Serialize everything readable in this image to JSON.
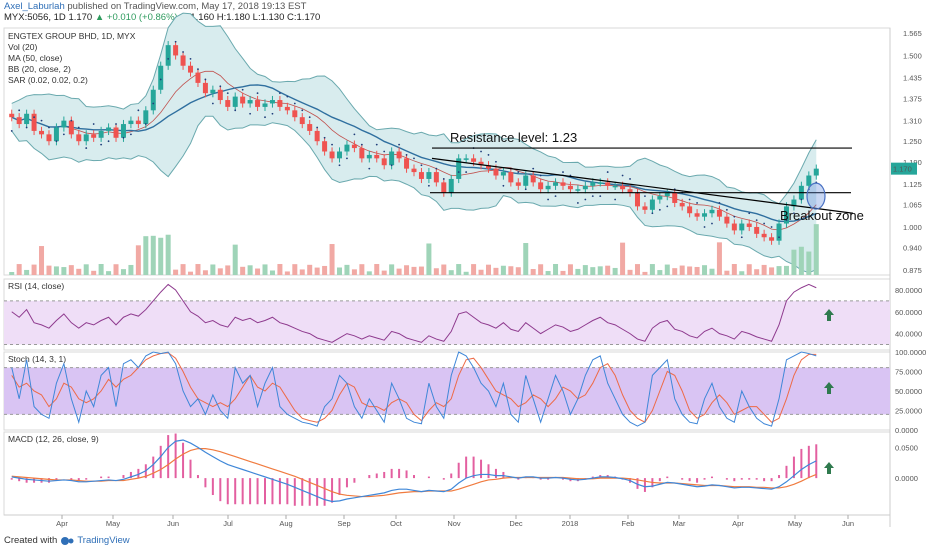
{
  "header": {
    "author": "Axel_Laburlah",
    "published": "published on TradingView.com, May 17, 2018 19:13 EST",
    "symbol": "MYX:5056, 1D",
    "last": "1.170",
    "change": "▲ +0.010 (+0.86%)",
    "ohlc": "O:1.160 H:1.180 L:1.130 C:1.170"
  },
  "footer": {
    "created": "Created with",
    "brand": "TradingView"
  },
  "colors": {
    "up": "#26a69a",
    "down": "#ef5350",
    "ma": "#2f6f9f",
    "bb_fill": "#d8ecee",
    "bb_line": "#6aa9ae",
    "sar": "#1f3d7a",
    "rsi": "#8e3a8e",
    "rsi_band": "#efdef7",
    "stoch_band": "#d9c4f3",
    "stoch_k": "#3f87d8",
    "stoch_d": "#ee6a46",
    "macd": "#3f87d8",
    "signal": "#f07b3f",
    "hist": "#e35fa0",
    "arrow": "#2f7a4e"
  },
  "chart_data": [
    {
      "type": "candlestick",
      "title": "ENGTEX GROUP BHD, 1D, MYX",
      "indicators": [
        "Vol (20)",
        "MA (50, close)",
        "BB (20, close, 2)",
        "SAR (0.02, 0.02, 0.2)"
      ],
      "x_ticks": [
        "Apr",
        "May",
        "Jun",
        "Jul",
        "Aug",
        "Sep",
        "Oct",
        "Nov",
        "Dec",
        "2018",
        "Feb",
        "Mar",
        "Apr",
        "May",
        "Jun"
      ],
      "y_ticks": [
        "1.565",
        "1.500",
        "1.435",
        "1.375",
        "1.310",
        "1.250",
        "1.190",
        "1.125",
        "1.065",
        "1.000",
        "0.940",
        "0.875"
      ],
      "ylim": [
        0.86,
        1.58
      ],
      "last_price": "1.170",
      "close_series": [
        1.32,
        1.3,
        1.33,
        1.28,
        1.27,
        1.25,
        1.29,
        1.31,
        1.27,
        1.25,
        1.27,
        1.26,
        1.28,
        1.29,
        1.26,
        1.3,
        1.31,
        1.3,
        1.34,
        1.4,
        1.47,
        1.53,
        1.5,
        1.47,
        1.45,
        1.42,
        1.39,
        1.4,
        1.37,
        1.35,
        1.38,
        1.36,
        1.37,
        1.35,
        1.36,
        1.37,
        1.35,
        1.34,
        1.32,
        1.3,
        1.28,
        1.25,
        1.22,
        1.2,
        1.22,
        1.24,
        1.23,
        1.2,
        1.21,
        1.2,
        1.18,
        1.22,
        1.2,
        1.17,
        1.16,
        1.14,
        1.16,
        1.13,
        1.1,
        1.14,
        1.2,
        1.2,
        1.19,
        1.18,
        1.17,
        1.15,
        1.16,
        1.13,
        1.12,
        1.15,
        1.13,
        1.11,
        1.12,
        1.13,
        1.12,
        1.11,
        1.11,
        1.12,
        1.13,
        1.13,
        1.12,
        1.12,
        1.11,
        1.1,
        1.06,
        1.05,
        1.08,
        1.09,
        1.1,
        1.07,
        1.06,
        1.04,
        1.03,
        1.04,
        1.05,
        1.03,
        1.01,
        0.99,
        1.01,
        1.0,
        0.98,
        0.97,
        0.96,
        1.01,
        1.06,
        1.08,
        1.12,
        1.15,
        1.17
      ],
      "annotations": [
        "Resistance level: 1.23",
        "Breakout zone"
      ],
      "resistance": 1.23,
      "support": 1.1
    },
    {
      "type": "line",
      "title": "RSI (14, close)",
      "y_ticks": [
        "80.0000",
        "60.0000",
        "40.0000"
      ],
      "ylim": [
        25,
        90
      ],
      "band": [
        30,
        70
      ],
      "values": [
        60,
        55,
        62,
        50,
        48,
        45,
        52,
        58,
        50,
        45,
        50,
        48,
        52,
        55,
        48,
        55,
        58,
        56,
        62,
        70,
        78,
        85,
        80,
        70,
        60,
        56,
        50,
        52,
        48,
        46,
        55,
        52,
        54,
        50,
        52,
        55,
        50,
        48,
        45,
        42,
        40,
        36,
        34,
        32,
        36,
        40,
        38,
        35,
        38,
        36,
        34,
        42,
        40,
        36,
        34,
        32,
        38,
        35,
        33,
        42,
        58,
        60,
        55,
        50,
        48,
        45,
        50,
        44,
        42,
        50,
        45,
        40,
        44,
        48,
        46,
        42,
        44,
        48,
        52,
        55,
        50,
        48,
        44,
        40,
        35,
        33,
        45,
        50,
        52,
        44,
        42,
        38,
        36,
        42,
        45,
        40,
        38,
        35,
        42,
        40,
        37,
        35,
        33,
        48,
        70,
        78,
        82,
        85,
        82
      ]
    },
    {
      "type": "line",
      "title": "Stoch (14, 3, 1)",
      "y_ticks": [
        "100.0000",
        "75.0000",
        "50.0000",
        "25.0000",
        "0.0000"
      ],
      "ylim": [
        0,
        100
      ],
      "band": [
        20,
        80
      ],
      "k": [
        80,
        40,
        90,
        30,
        20,
        15,
        60,
        85,
        40,
        10,
        50,
        30,
        70,
        80,
        30,
        85,
        90,
        80,
        95,
        100,
        98,
        100,
        85,
        50,
        30,
        40,
        20,
        45,
        25,
        15,
        80,
        60,
        70,
        30,
        60,
        80,
        30,
        20,
        15,
        10,
        8,
        5,
        30,
        40,
        70,
        60,
        30,
        15,
        40,
        25,
        10,
        60,
        40,
        15,
        10,
        8,
        60,
        30,
        15,
        70,
        100,
        95,
        80,
        60,
        50,
        30,
        60,
        20,
        10,
        70,
        40,
        10,
        40,
        70,
        50,
        20,
        40,
        70,
        90,
        95,
        60,
        40,
        20,
        10,
        5,
        10,
        70,
        80,
        90,
        40,
        20,
        10,
        8,
        40,
        60,
        30,
        15,
        10,
        50,
        30,
        15,
        8,
        5,
        40,
        90,
        95,
        100,
        98,
        95
      ],
      "d": [
        70,
        55,
        60,
        50,
        45,
        30,
        40,
        60,
        55,
        40,
        35,
        40,
        50,
        65,
        55,
        65,
        70,
        80,
        90,
        95,
        98,
        99,
        92,
        75,
        55,
        40,
        35,
        30,
        35,
        30,
        40,
        55,
        70,
        55,
        50,
        60,
        55,
        40,
        25,
        15,
        12,
        10,
        15,
        25,
        45,
        60,
        55,
        35,
        30,
        30,
        25,
        35,
        40,
        35,
        20,
        12,
        25,
        35,
        30,
        40,
        70,
        90,
        92,
        80,
        65,
        50,
        45,
        40,
        30,
        35,
        45,
        40,
        30,
        40,
        55,
        50,
        40,
        45,
        60,
        80,
        85,
        70,
        45,
        25,
        15,
        10,
        25,
        50,
        75,
        70,
        50,
        25,
        15,
        20,
        35,
        45,
        35,
        20,
        25,
        30,
        30,
        20,
        10,
        15,
        40,
        70,
        90,
        97,
        97
      ]
    },
    {
      "type": "line",
      "title": "MACD (12, 26, close, 9)",
      "y_ticks": [
        "0.0500",
        "0.0000"
      ],
      "ylim": [
        -0.06,
        0.075
      ],
      "macd": [
        0.002,
        0.0,
        -0.002,
        -0.003,
        -0.004,
        -0.005,
        -0.004,
        -0.003,
        -0.004,
        -0.006,
        -0.006,
        -0.005,
        -0.004,
        -0.003,
        -0.004,
        -0.002,
        0.002,
        0.006,
        0.012,
        0.022,
        0.035,
        0.05,
        0.06,
        0.062,
        0.057,
        0.05,
        0.042,
        0.035,
        0.028,
        0.022,
        0.018,
        0.014,
        0.01,
        0.006,
        0.002,
        -0.002,
        -0.006,
        -0.01,
        -0.015,
        -0.02,
        -0.025,
        -0.03,
        -0.035,
        -0.038,
        -0.037,
        -0.034,
        -0.032,
        -0.03,
        -0.028,
        -0.026,
        -0.024,
        -0.02,
        -0.018,
        -0.018,
        -0.02,
        -0.022,
        -0.02,
        -0.021,
        -0.022,
        -0.018,
        -0.008,
        0.0,
        0.004,
        0.006,
        0.006,
        0.004,
        0.004,
        0.002,
        0.0,
        0.002,
        0.002,
        0.0,
        0.0,
        0.001,
        0.0,
        -0.002,
        -0.003,
        -0.002,
        0.0,
        0.002,
        0.002,
        0.001,
        -0.001,
        -0.004,
        -0.01,
        -0.014,
        -0.013,
        -0.01,
        -0.007,
        -0.008,
        -0.01,
        -0.012,
        -0.014,
        -0.013,
        -0.011,
        -0.012,
        -0.014,
        -0.016,
        -0.015,
        -0.015,
        -0.016,
        -0.017,
        -0.018,
        -0.014,
        -0.006,
        0.004,
        0.014,
        0.022,
        0.028
      ],
      "signal": [
        0.003,
        0.002,
        0.001,
        0.0,
        -0.001,
        -0.002,
        -0.003,
        -0.003,
        -0.003,
        -0.004,
        -0.005,
        -0.005,
        -0.005,
        -0.004,
        -0.004,
        -0.004,
        -0.002,
        0.0,
        0.003,
        0.008,
        0.014,
        0.022,
        0.031,
        0.039,
        0.045,
        0.048,
        0.048,
        0.046,
        0.043,
        0.039,
        0.035,
        0.031,
        0.027,
        0.023,
        0.019,
        0.015,
        0.011,
        0.007,
        0.003,
        -0.002,
        -0.007,
        -0.012,
        -0.017,
        -0.022,
        -0.026,
        -0.028,
        -0.029,
        -0.03,
        -0.03,
        -0.029,
        -0.028,
        -0.026,
        -0.024,
        -0.023,
        -0.022,
        -0.022,
        -0.021,
        -0.021,
        -0.021,
        -0.021,
        -0.018,
        -0.014,
        -0.01,
        -0.006,
        -0.003,
        -0.002,
        0.0,
        0.001,
        0.001,
        0.001,
        0.001,
        0.001,
        0.001,
        0.001,
        0.001,
        0.0,
        -0.001,
        -0.001,
        -0.001,
        0.0,
        0.0,
        0.0,
        0.0,
        -0.001,
        -0.003,
        -0.005,
        -0.007,
        -0.008,
        -0.008,
        -0.008,
        -0.009,
        -0.01,
        -0.011,
        -0.012,
        -0.012,
        -0.012,
        -0.013,
        -0.014,
        -0.014,
        -0.014,
        -0.015,
        -0.015,
        -0.016,
        -0.016,
        -0.014,
        -0.01,
        -0.005,
        0.001,
        0.006
      ]
    }
  ]
}
